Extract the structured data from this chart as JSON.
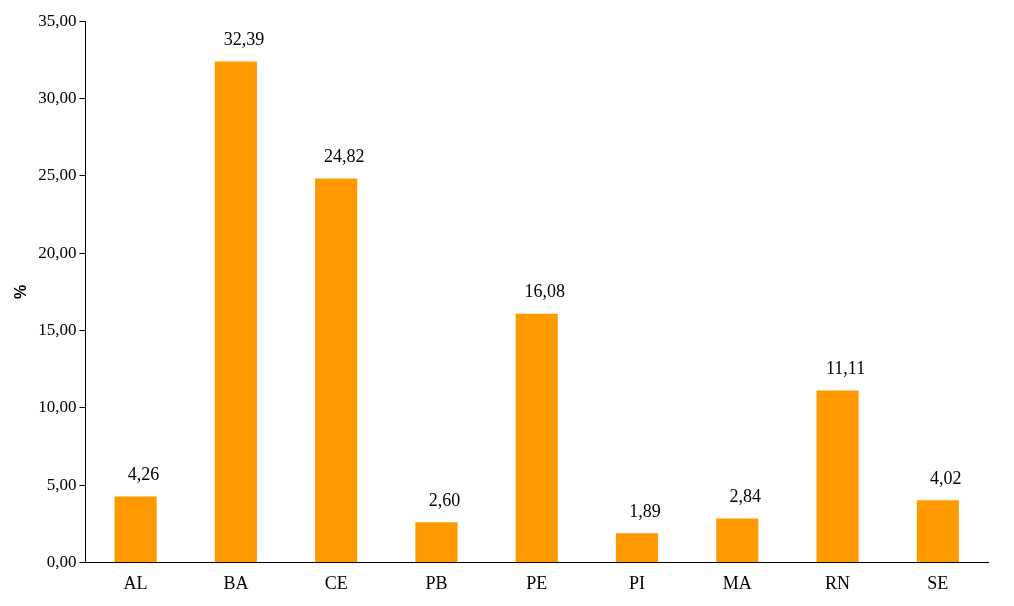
{
  "chart_data": {
    "type": "bar",
    "ylabel": "%",
    "categories": [
      "AL",
      "BA",
      "CE",
      "PB",
      "PE",
      "PI",
      "MA",
      "RN",
      "SE"
    ],
    "values": [
      4.26,
      32.39,
      24.82,
      2.6,
      16.08,
      1.89,
      2.84,
      11.11,
      4.02
    ],
    "value_labels": [
      "4,26",
      "32,39",
      "24,82",
      "2,60",
      "16,08",
      "1,89",
      "2,84",
      "11,11",
      "4,02"
    ],
    "color": "#ff9900",
    "ylim": [
      0,
      35
    ],
    "yticks": [
      {
        "value": 0,
        "label": "0,00"
      },
      {
        "value": 5,
        "label": "5,00"
      },
      {
        "value": 10,
        "label": "10,00"
      },
      {
        "value": 15,
        "label": "15,00"
      },
      {
        "value": 20,
        "label": "20,00"
      },
      {
        "value": 25,
        "label": "25,00"
      },
      {
        "value": 30,
        "label": "30,00"
      },
      {
        "value": 35,
        "label": "35,00"
      }
    ],
    "grid": false,
    "legend": false
  }
}
